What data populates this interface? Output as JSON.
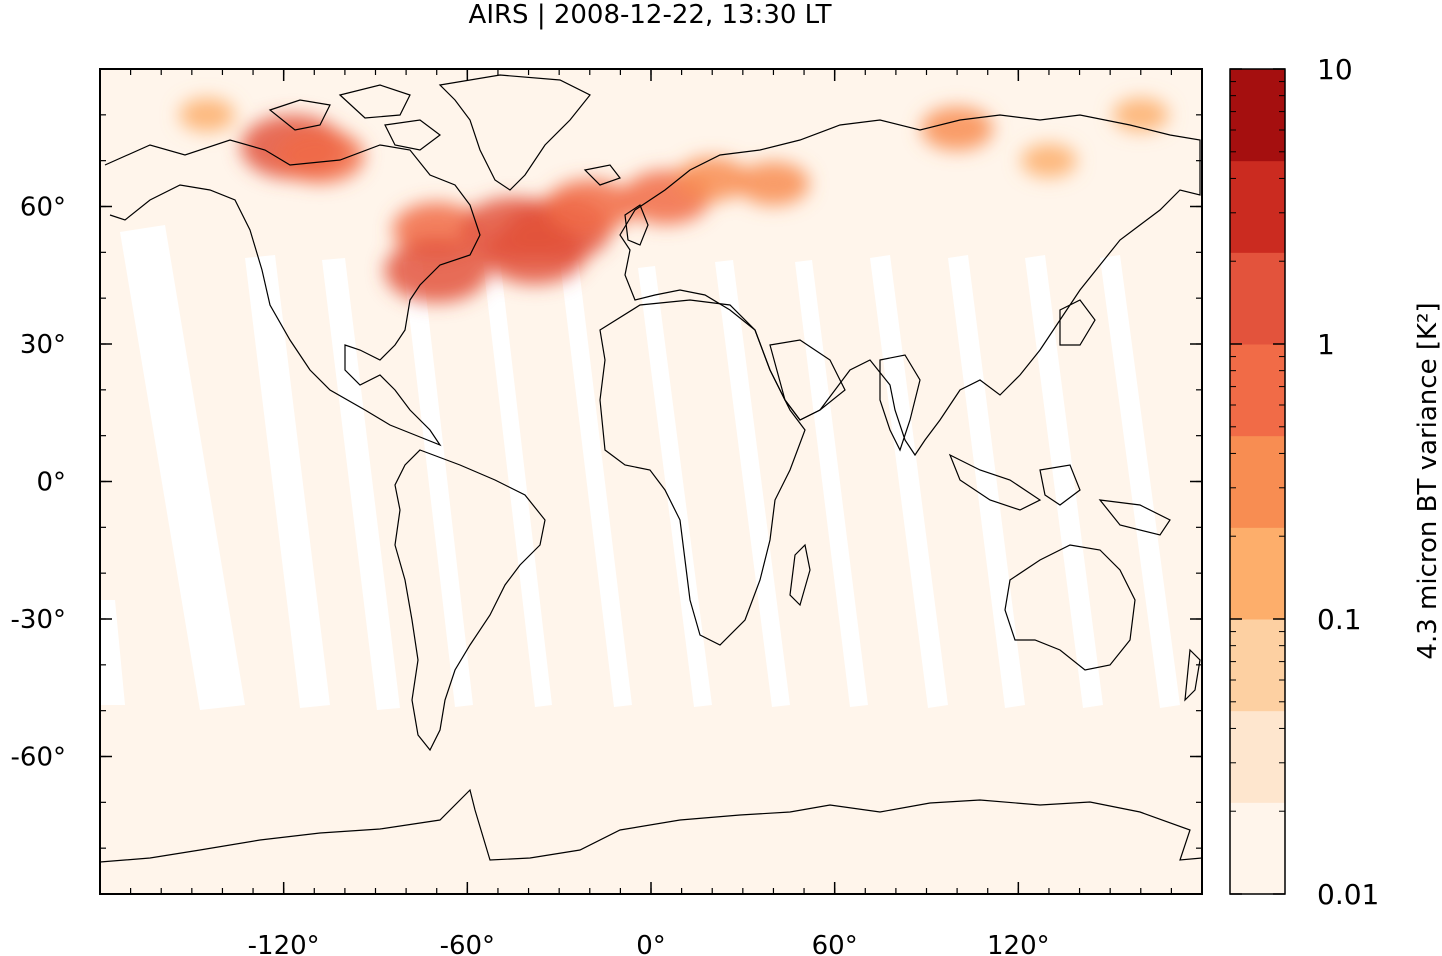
{
  "title": "AIRS | 2008-12-22, 13:30 LT",
  "map": {
    "lon_range": [
      -180,
      180
    ],
    "lat_range": [
      -90,
      90
    ],
    "x_ticks": [
      {
        "value": -120,
        "label": "-120°"
      },
      {
        "value": -60,
        "label": "-60°"
      },
      {
        "value": 0,
        "label": "0°"
      },
      {
        "value": 60,
        "label": "60°"
      },
      {
        "value": 120,
        "label": "120°"
      }
    ],
    "y_ticks": [
      {
        "value": 60,
        "label": "60°"
      },
      {
        "value": 30,
        "label": "30°"
      },
      {
        "value": 0,
        "label": "0°"
      },
      {
        "value": -30,
        "label": "-30°"
      },
      {
        "value": -60,
        "label": "-60°"
      }
    ],
    "background_color": "#fff5eb",
    "hotspots": [
      {
        "lon": -117,
        "lat": 73,
        "level": 4
      },
      {
        "lon": -108,
        "lat": 71,
        "level": 3
      },
      {
        "lon": -70,
        "lat": 55,
        "level": 3
      },
      {
        "lon": -70,
        "lat": 46,
        "level": 4
      },
      {
        "lon": -45,
        "lat": 55,
        "level": 4
      },
      {
        "lon": -38,
        "lat": 50,
        "level": 4
      },
      {
        "lon": -30,
        "lat": 55,
        "level": 4
      },
      {
        "lon": -20,
        "lat": 60,
        "level": 3
      },
      {
        "lon": 5,
        "lat": 62,
        "level": 3
      },
      {
        "lon": 20,
        "lat": 66,
        "level": 2
      },
      {
        "lon": 40,
        "lat": 65,
        "level": 2
      },
      {
        "lon": 100,
        "lat": 77,
        "level": 2
      },
      {
        "lon": -145,
        "lat": 80,
        "level": 1
      },
      {
        "lon": 130,
        "lat": 70,
        "level": 1
      },
      {
        "lon": 160,
        "lat": 80,
        "level": 1
      }
    ]
  },
  "colorbar": {
    "title": "4.3 micron BT variance [K²]",
    "scale": "log",
    "range": [
      0.01,
      10
    ],
    "levels": [
      {
        "color": "#fff5eb"
      },
      {
        "color": "#fee6ce"
      },
      {
        "color": "#fdd0a2"
      },
      {
        "color": "#fdae6b"
      },
      {
        "color": "#f88d52"
      },
      {
        "color": "#f16b47"
      },
      {
        "color": "#e3533c"
      },
      {
        "color": "#cb2b20"
      },
      {
        "color": "#a50f0f"
      }
    ],
    "tick_labels": [
      {
        "value": 10,
        "label": "10"
      },
      {
        "value": 1,
        "label": "1"
      },
      {
        "value": 0.1,
        "label": "0.1"
      },
      {
        "value": 0.01,
        "label": "0.01"
      }
    ]
  }
}
